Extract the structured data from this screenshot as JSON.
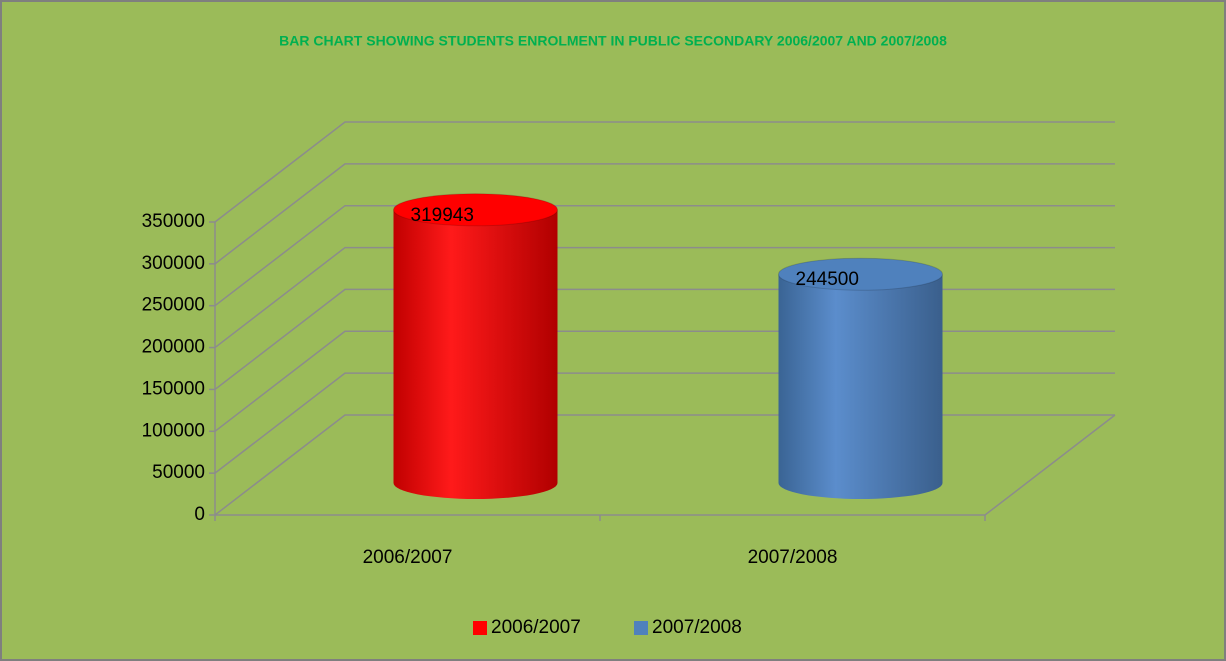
{
  "chart_data": {
    "type": "bar3d-cylinder",
    "title": "BAR CHART SHOWING STUDENTS ENROLMENT IN PUBLIC SECONDARY 2006/2007 AND 2007/2008",
    "categories": [
      "2006/2007",
      "2007/2008"
    ],
    "series": [
      {
        "name": "2006/2007",
        "color": "#ff0000",
        "values": [
          319943,
          null
        ]
      },
      {
        "name": "2007/2008",
        "color": "#4f81bd",
        "values": [
          null,
          244500
        ]
      }
    ],
    "ylim": [
      0,
      350000
    ],
    "yticks": [
      0,
      50000,
      100000,
      150000,
      200000,
      250000,
      300000,
      350000
    ],
    "grid": true,
    "legend": "bottom"
  }
}
